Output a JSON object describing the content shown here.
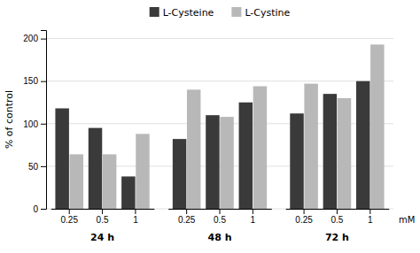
{
  "chart_data": {
    "type": "bar",
    "ylabel": "% of control",
    "xlabel": "mM",
    "groups": [
      "24 h",
      "48 h",
      "72 h"
    ],
    "categories": [
      "0.25",
      "0.5",
      "1",
      "0.25",
      "0.5",
      "1",
      "0.25",
      "0.5",
      "1"
    ],
    "series": [
      {
        "name": "L-Cysteine",
        "color": "#3a3a3a",
        "values": [
          118,
          95,
          38,
          82,
          110,
          125,
          112,
          135,
          150
        ]
      },
      {
        "name": "L-Cystine",
        "color": "#b8b8b8",
        "values": [
          64,
          64,
          88,
          140,
          108,
          144,
          147,
          130,
          193
        ]
      }
    ],
    "ylim": [
      0,
      210
    ],
    "yticks": [
      0,
      50,
      100,
      150,
      200
    ],
    "grid": true,
    "legend": "top"
  }
}
